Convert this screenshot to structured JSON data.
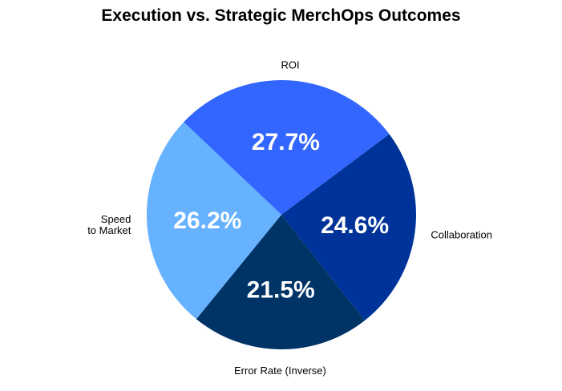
{
  "chart_data": {
    "type": "pie",
    "title": "Execution vs. Strategic MerchOps Outcomes",
    "slices": [
      {
        "label": "ROI",
        "value": 27.7,
        "display": "27.7%",
        "color": "#3366FF"
      },
      {
        "label": "Collaboration",
        "value": 24.6,
        "display": "24.6%",
        "color": "#003399"
      },
      {
        "label": "Error Rate (Inverse)",
        "value": 21.5,
        "display": "21.5%",
        "color": "#003366"
      },
      {
        "label": "Speed\nto Market",
        "value": 26.2,
        "display": "26.2%",
        "color": "#66B2FF"
      }
    ]
  }
}
